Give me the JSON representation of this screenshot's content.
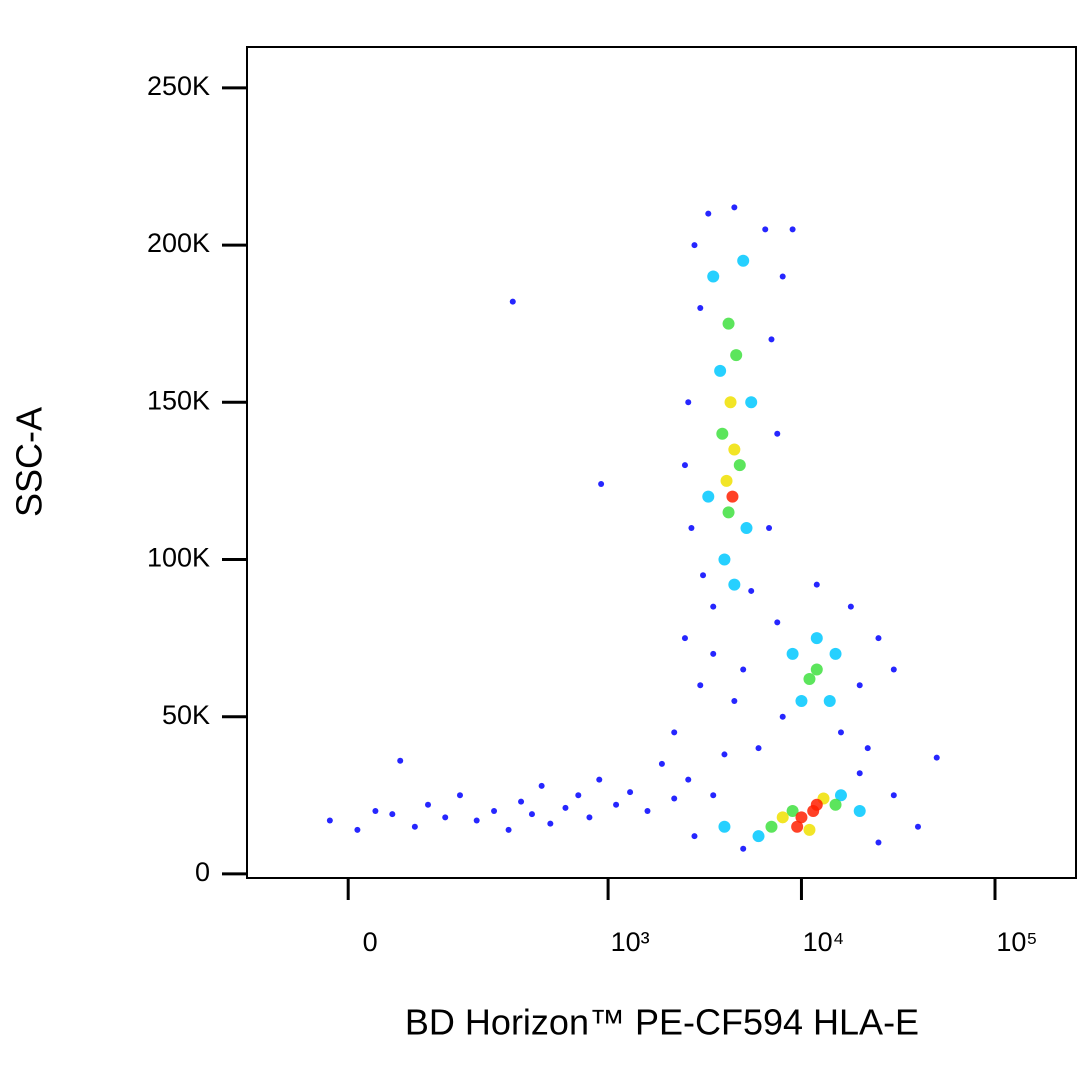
{
  "chart_data": {
    "type": "scatter",
    "xlabel": "BD Horizon™ PE-CF594 HLA-E",
    "ylabel": "SSC-A",
    "xscale": "asinh",
    "x_linear_width": 91,
    "xlim": [
      -138,
      262144
    ],
    "ylim": [
      -1300,
      263000
    ],
    "xticks": [
      0,
      {
        "value": 1000,
        "label": "10³"
      },
      {
        "value": 10000,
        "label": "10⁴"
      },
      {
        "value": 100000,
        "label": "10⁵"
      }
    ],
    "yticks": [
      0,
      {
        "value": 50000,
        "label": "50K"
      },
      {
        "value": 100000,
        "label": "100K"
      },
      {
        "value": 150000,
        "label": "150K"
      },
      {
        "value": 200000,
        "label": "200K"
      },
      {
        "value": 250000,
        "label": "250K"
      }
    ],
    "series": [
      {
        "color": "#0000ff",
        "x": [
          -20,
          10,
          30,
          50,
          80,
          100,
          130,
          160,
          200,
          250,
          300,
          350,
          400,
          450,
          500,
          600,
          700,
          800,
          900,
          1100,
          1300,
          1600,
          1900,
          2200,
          2600,
          60,
          316,
          920,
          2800,
          3000,
          2600,
          2700,
          3100,
          6500,
          7000,
          7500,
          6800,
          3500,
          5500,
          3300,
          4500,
          2500,
          8000,
          9000,
          7500,
          8000,
          16000,
          20000,
          25000,
          18000,
          12000,
          22000,
          30000,
          2800,
          3500,
          30000,
          25000,
          5000,
          20000,
          4000,
          6000,
          2200,
          40000,
          50000,
          3000,
          3500,
          4500,
          5000,
          2500
        ],
        "y": [
          17000,
          14000,
          20000,
          19000,
          15000,
          22000,
          18000,
          25000,
          17000,
          20000,
          14000,
          23000,
          19000,
          28000,
          16000,
          21000,
          25000,
          18000,
          30000,
          22000,
          26000,
          20000,
          35000,
          24000,
          30000,
          36000,
          182000,
          124000,
          200000,
          180000,
          150000,
          110000,
          95000,
          205000,
          170000,
          140000,
          110000,
          85000,
          90000,
          210000,
          212000,
          130000,
          190000,
          205000,
          80000,
          50000,
          45000,
          60000,
          75000,
          85000,
          92000,
          40000,
          65000,
          12000,
          25000,
          25000,
          10000,
          8000,
          32000,
          38000,
          40000,
          45000,
          15000,
          37000,
          60000,
          70000,
          55000,
          65000,
          75000
        ]
      },
      {
        "color": "#00c8ff",
        "x": [
          3500,
          5000,
          3800,
          5500,
          3300,
          5200,
          4000,
          4500,
          9000,
          14000,
          10000,
          15000,
          12000,
          4000,
          16000,
          6000,
          20000
        ],
        "y": [
          190000,
          195000,
          160000,
          150000,
          120000,
          110000,
          100000,
          92000,
          70000,
          55000,
          55000,
          70000,
          75000,
          15000,
          25000,
          12000,
          20000
        ]
      },
      {
        "color": "#40e040",
        "x": [
          4200,
          4600,
          3900,
          4800,
          4200,
          11000,
          12000,
          7000,
          15000,
          9000
        ],
        "y": [
          175000,
          165000,
          140000,
          130000,
          115000,
          62000,
          65000,
          15000,
          22000,
          20000
        ]
      },
      {
        "color": "#f0e000",
        "x": [
          4300,
          4500,
          4100,
          8000,
          13000,
          11000
        ],
        "y": [
          150000,
          135000,
          125000,
          18000,
          24000,
          14000
        ]
      },
      {
        "color": "#ff2000",
        "x": [
          4400,
          10000,
          11500,
          9500,
          12000
        ],
        "y": [
          120000,
          18000,
          20000,
          15000,
          22000
        ]
      }
    ]
  }
}
